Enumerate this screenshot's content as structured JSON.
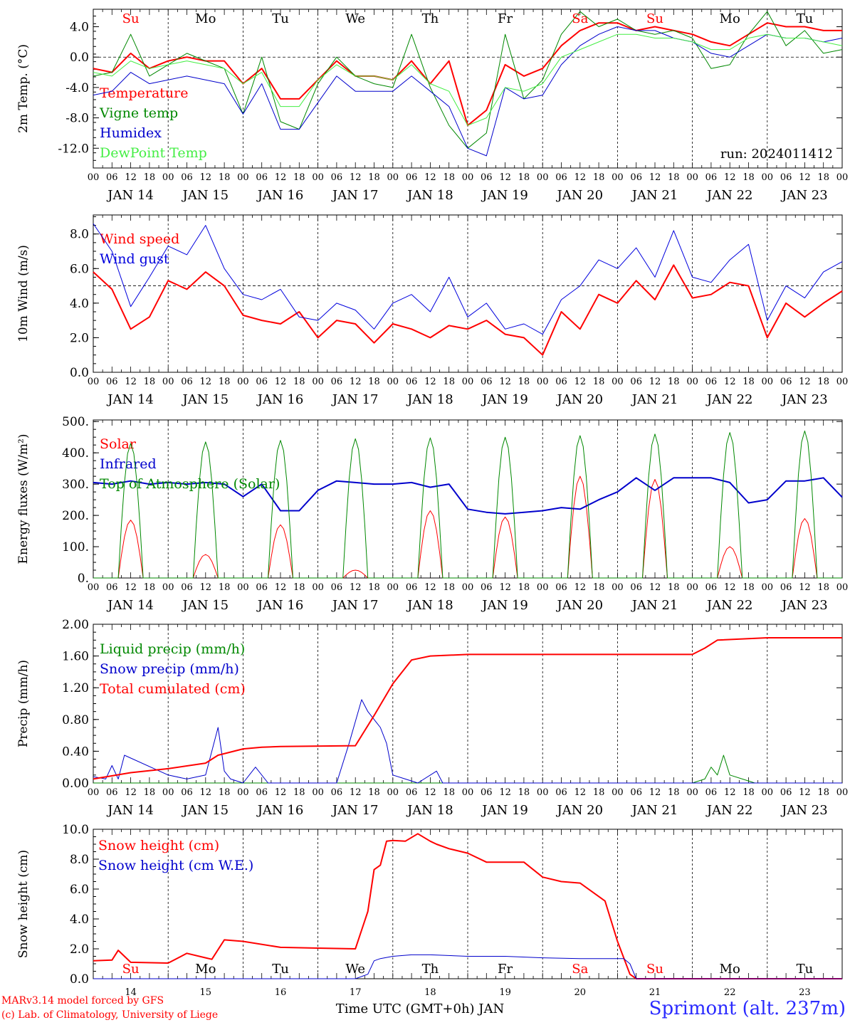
{
  "day_letters": [
    "Su",
    "Mo",
    "Tu",
    "We",
    "Th",
    "Fr",
    "Sa",
    "Su",
    "Mo",
    "Tu"
  ],
  "day_letter_colors": [
    "#ff0000",
    "#000000",
    "#000000",
    "#000000",
    "#000000",
    "#000000",
    "#ff0000",
    "#ff0000",
    "#000000",
    "#000000"
  ],
  "hour_ticks": [
    "00",
    "06",
    "12",
    "18"
  ],
  "hour_tick_end": "00",
  "date_labels": [
    "JAN 14",
    "JAN 15",
    "JAN 16",
    "JAN 17",
    "JAN 18",
    "JAN 19",
    "JAN 20",
    "JAN 21",
    "JAN 22",
    "JAN 23"
  ],
  "bottom_day_numbers": [
    "14",
    "15",
    "16",
    "17",
    "18",
    "19",
    "20",
    "21",
    "22",
    "23"
  ],
  "x_title": "Time UTC (GMT+0h) JAN",
  "credit_line1": "MARv3.14 model forced by GFS",
  "credit_line2": "(c) Lab. of Climatology, University of Liege",
  "station": "Sprimont (alt. 237m)",
  "chart_data": [
    {
      "type": "line",
      "ylabel": "2m Temp. (°C)",
      "ylim": [
        -14.6,
        6.3
      ],
      "yticks": [
        "4.0",
        "0.0",
        "-4.0",
        "-8.0",
        "-12.0"
      ],
      "ytick_values": [
        4,
        0,
        -4,
        -8,
        -12
      ],
      "reference_line": 0,
      "annotation": "run: 2024011412",
      "x_unit": "hours since JAN 14 00",
      "x_range": [
        0,
        240
      ],
      "series": [
        {
          "name": "Temperature",
          "color": "#ff0000",
          "width": 2,
          "x": [
            0,
            6,
            12,
            18,
            24,
            30,
            36,
            42,
            48,
            54,
            60,
            66,
            72,
            78,
            84,
            90,
            96,
            102,
            108,
            114,
            120,
            126,
            132,
            138,
            144,
            150,
            156,
            162,
            168,
            174,
            180,
            186,
            192,
            198,
            204,
            210,
            216,
            222,
            228,
            234,
            240
          ],
          "y": [
            -1.5,
            -2,
            0.5,
            -1.5,
            -0.5,
            0,
            -0.5,
            -0.5,
            -3.5,
            -1.5,
            -5.5,
            -5.5,
            -3,
            -0.5,
            -2.5,
            -2.5,
            -3,
            -0.5,
            -3.5,
            -0.5,
            -9,
            -7,
            -1,
            -2.5,
            -1.5,
            1.5,
            3.5,
            4.5,
            4.5,
            3.5,
            4,
            3.5,
            3,
            2,
            1.5,
            3,
            4.5,
            4,
            4,
            3.5,
            3.5
          ]
        },
        {
          "name": "Vigne temp",
          "color": "#008800",
          "width": 1,
          "x": [
            0,
            6,
            12,
            18,
            24,
            30,
            36,
            42,
            48,
            54,
            60,
            66,
            72,
            78,
            84,
            90,
            96,
            102,
            108,
            114,
            120,
            126,
            132,
            138,
            144,
            150,
            156,
            162,
            168,
            174,
            180,
            186,
            192,
            198,
            204,
            210,
            216,
            222,
            228,
            234,
            240
          ],
          "y": [
            -2.5,
            -2,
            3,
            -2.5,
            -1,
            0.5,
            -0.5,
            -1.5,
            -7.5,
            0,
            -8.5,
            -9.5,
            -3.5,
            0,
            -2.5,
            -3.5,
            -4,
            3,
            -4,
            -9,
            -12,
            -10,
            3,
            -5.5,
            -3,
            3,
            6,
            4,
            5,
            3.5,
            3,
            3.5,
            2.5,
            -1.5,
            -1,
            3,
            6,
            1.5,
            3.5,
            0.5,
            1
          ]
        },
        {
          "name": "Humidex",
          "color": "#0000cc",
          "width": 1,
          "x": [
            0,
            6,
            12,
            18,
            24,
            30,
            36,
            42,
            48,
            54,
            60,
            66,
            72,
            78,
            84,
            90,
            96,
            102,
            108,
            114,
            120,
            126,
            132,
            138,
            144,
            150,
            156,
            162,
            168,
            174,
            180,
            186,
            192,
            198,
            204,
            210,
            216,
            222,
            228,
            234,
            240
          ],
          "y": [
            -5,
            -4.5,
            -2,
            -3.5,
            -3,
            -2.5,
            -3,
            -3.5,
            -7.5,
            -3.5,
            -9.5,
            -9.5,
            -6,
            -2.5,
            -4.5,
            -4.5,
            -4.5,
            -2.5,
            -4.5,
            -6.5,
            -12,
            -13,
            -4,
            -5.5,
            -5,
            -1,
            1.5,
            3,
            4,
            3.5,
            3.5,
            2.5,
            2,
            0.5,
            0,
            1.5,
            3,
            2.5,
            2.5,
            2,
            2.5
          ]
        },
        {
          "name": "DewPoint Temp",
          "color": "#44ee44",
          "width": 1,
          "x": [
            0,
            6,
            12,
            18,
            24,
            30,
            36,
            42,
            48,
            54,
            60,
            66,
            72,
            78,
            84,
            90,
            96,
            102,
            108,
            114,
            120,
            126,
            132,
            138,
            144,
            150,
            156,
            162,
            168,
            174,
            180,
            186,
            192,
            198,
            204,
            210,
            216,
            222,
            228,
            234,
            240
          ],
          "y": [
            -2,
            -2.5,
            -0.5,
            -1.5,
            -1,
            -0.5,
            -1,
            -1.5,
            -3.5,
            -2,
            -6.5,
            -6.5,
            -3,
            -1,
            -2.5,
            -2.5,
            -3,
            -1,
            -3.5,
            -4.5,
            -9,
            -8,
            -4,
            -4.5,
            -3.5,
            0,
            1,
            2,
            3,
            3,
            2.5,
            2.5,
            2,
            1,
            1,
            2.5,
            3,
            2.5,
            2.5,
            2,
            1.5
          ]
        }
      ]
    },
    {
      "type": "line",
      "ylabel": "10m Wind (m/s)",
      "ylim": [
        0,
        9.1
      ],
      "yticks": [
        "8.0",
        "6.0",
        "4.0",
        "2.0",
        "0.0"
      ],
      "ytick_values": [
        8,
        6,
        4,
        2,
        0
      ],
      "reference_line": 5,
      "x_unit": "hours since JAN 14 00",
      "x_range": [
        0,
        240
      ],
      "series": [
        {
          "name": "Wind speed",
          "color": "#ff0000",
          "width": 2,
          "x": [
            0,
            6,
            12,
            18,
            24,
            30,
            36,
            42,
            48,
            54,
            60,
            66,
            72,
            78,
            84,
            90,
            96,
            102,
            108,
            114,
            120,
            126,
            132,
            138,
            144,
            150,
            156,
            162,
            168,
            174,
            180,
            186,
            192,
            198,
            204,
            210,
            216,
            222,
            228,
            234,
            240
          ],
          "y": [
            5.8,
            4.8,
            2.5,
            3.2,
            5.3,
            4.8,
            5.8,
            5,
            3.3,
            3,
            2.8,
            3.5,
            2,
            3,
            2.8,
            1.7,
            2.8,
            2.5,
            2,
            2.7,
            2.5,
            3,
            2.2,
            2,
            1,
            3.5,
            2.5,
            4.5,
            4,
            5.3,
            4.2,
            6.2,
            4.3,
            4.5,
            5.2,
            5,
            2,
            4,
            3.2,
            4,
            4.7
          ]
        },
        {
          "name": "Wind gust",
          "color": "#0000dd",
          "width": 1,
          "x": [
            0,
            6,
            12,
            18,
            24,
            30,
            36,
            42,
            48,
            54,
            60,
            66,
            72,
            78,
            84,
            90,
            96,
            102,
            108,
            114,
            120,
            126,
            132,
            138,
            144,
            150,
            156,
            162,
            168,
            174,
            180,
            186,
            192,
            198,
            204,
            210,
            216,
            222,
            228,
            234,
            240
          ],
          "y": [
            8.6,
            7,
            3.8,
            5.5,
            7.3,
            6.8,
            8.5,
            6,
            4.5,
            4.2,
            4.8,
            3.2,
            3,
            4,
            3.6,
            2.5,
            4,
            4.5,
            3.5,
            5.5,
            3.2,
            4,
            2.5,
            2.8,
            2.2,
            4.2,
            5,
            6.5,
            6,
            7.2,
            5.5,
            8.2,
            5.5,
            5.2,
            6.5,
            7.4,
            3,
            5,
            4.3,
            5.8,
            6.4
          ]
        }
      ]
    },
    {
      "type": "line",
      "ylabel": "Energy fluxes (W/m²)",
      "ylim": [
        0,
        505
      ],
      "yticks": [
        "500.",
        "400.",
        "300.",
        "200.",
        "100.",
        "0."
      ],
      "ytick_values": [
        500,
        400,
        300,
        200,
        100,
        0
      ],
      "x_unit": "hours since JAN 14 00",
      "x_range": [
        0,
        240
      ],
      "series": [
        {
          "name": "Solar",
          "color": "#ff0000",
          "width": 1,
          "peak_hour": 12,
          "daylight_hours": [
            8,
            16
          ],
          "daily_peaks": [
            185,
            75,
            170,
            25,
            215,
            195,
            325,
            315,
            100,
            190
          ]
        },
        {
          "name": "Infrared",
          "color": "#0000cc",
          "width": 2,
          "x": [
            0,
            6,
            12,
            18,
            24,
            30,
            36,
            42,
            48,
            54,
            60,
            66,
            72,
            78,
            84,
            90,
            96,
            102,
            108,
            114,
            120,
            126,
            132,
            138,
            144,
            150,
            156,
            162,
            168,
            174,
            180,
            186,
            192,
            198,
            204,
            210,
            216,
            222,
            228,
            234,
            240
          ],
          "y": [
            305,
            300,
            310,
            300,
            305,
            300,
            305,
            300,
            260,
            300,
            215,
            215,
            280,
            310,
            305,
            300,
            300,
            305,
            290,
            300,
            220,
            210,
            205,
            210,
            215,
            225,
            220,
            250,
            275,
            320,
            280,
            320,
            320,
            320,
            305,
            240,
            250,
            310,
            310,
            320,
            258
          ]
        },
        {
          "name": "Top of Atmosphere (Solar)",
          "color": "#008800",
          "width": 1,
          "peak_hour": 12,
          "daylight_hours": [
            8,
            16
          ],
          "daily_peaks": [
            430,
            435,
            440,
            445,
            448,
            450,
            455,
            460,
            465,
            470
          ]
        }
      ]
    },
    {
      "type": "line",
      "ylabel": "Precip (mm/h)",
      "ylim": [
        0,
        2.0
      ],
      "yticks": [
        "2.00",
        "1.60",
        "1.20",
        "0.80",
        "0.40",
        "0.00"
      ],
      "ytick_values": [
        2.0,
        1.6,
        1.2,
        0.8,
        0.4,
        0
      ],
      "x_unit": "hours since JAN 14 00",
      "x_range": [
        0,
        240
      ],
      "series": [
        {
          "name": "Liquid precip (mm/h)",
          "color": "#008800",
          "width": 1,
          "x": [
            0,
            192,
            196,
            198,
            200,
            202,
            204,
            208,
            212,
            240
          ],
          "y": [
            0,
            0,
            0.05,
            0.2,
            0.1,
            0.35,
            0.1,
            0.05,
            0,
            0
          ]
        },
        {
          "name": "Snow precip (mm/h)",
          "color": "#0000cc",
          "width": 1,
          "x": [
            0,
            4,
            6,
            8,
            10,
            24,
            30,
            36,
            40,
            42,
            44,
            48,
            52,
            56,
            60,
            78,
            82,
            86,
            88,
            90,
            92,
            94,
            96,
            100,
            104,
            110,
            112,
            116,
            240
          ],
          "y": [
            0.08,
            0.05,
            0.22,
            0.05,
            0.35,
            0.1,
            0.05,
            0.1,
            0.7,
            0.15,
            0.05,
            0,
            0.2,
            0,
            0,
            0,
            0.5,
            1.05,
            0.9,
            0.8,
            0.7,
            0.5,
            0.1,
            0.05,
            0,
            0.15,
            0,
            0,
            0
          ]
        },
        {
          "name": "Total cumulated (cm)",
          "color": "#ff0000",
          "width": 2,
          "x": [
            0,
            12,
            24,
            36,
            40,
            48,
            54,
            60,
            84,
            90,
            96,
            102,
            108,
            120,
            144,
            168,
            192,
            196,
            200,
            216,
            240
          ],
          "y": [
            0.05,
            0.13,
            0.18,
            0.25,
            0.35,
            0.43,
            0.45,
            0.46,
            0.47,
            0.85,
            1.25,
            1.55,
            1.6,
            1.62,
            1.62,
            1.62,
            1.62,
            1.7,
            1.8,
            1.83,
            1.83
          ]
        }
      ]
    },
    {
      "type": "line",
      "ylabel": "Snow height (cm)",
      "ylim": [
        0,
        10
      ],
      "yticks": [
        "10.0",
        "8.0",
        "6.0",
        "4.0",
        "2.0",
        "0.0"
      ],
      "ytick_values": [
        10,
        8,
        6,
        4,
        2,
        0
      ],
      "x_unit": "hours since JAN 14 00",
      "x_range": [
        0,
        240
      ],
      "series": [
        {
          "name": "Snow height (cm)",
          "color": "#ff0000",
          "width": 2,
          "x": [
            0,
            6,
            8,
            12,
            24,
            30,
            36,
            38,
            42,
            48,
            60,
            72,
            84,
            88,
            90,
            92,
            94,
            96,
            100,
            104,
            108,
            110,
            114,
            120,
            126,
            132,
            138,
            144,
            150,
            156,
            164,
            168,
            172,
            174,
            177,
            240
          ],
          "y": [
            1.2,
            1.25,
            1.9,
            1.1,
            1.05,
            1.7,
            1.4,
            1.3,
            2.6,
            2.5,
            2.1,
            2.05,
            2.0,
            4.5,
            7.3,
            7.6,
            9.2,
            9.25,
            9.2,
            9.7,
            9.2,
            9.0,
            8.7,
            8.4,
            7.8,
            7.8,
            7.8,
            6.8,
            6.5,
            6.4,
            5.2,
            2.5,
            0.3,
            0,
            0,
            0
          ]
        },
        {
          "name": "Snow height (cm W.E.)",
          "color": "#0000cc",
          "width": 1,
          "x": [
            0,
            84,
            88,
            90,
            92,
            96,
            102,
            108,
            120,
            132,
            144,
            156,
            170,
            172,
            174,
            240
          ],
          "y": [
            0,
            0,
            0.3,
            1.2,
            1.35,
            1.5,
            1.6,
            1.6,
            1.5,
            1.5,
            1.4,
            1.35,
            1.35,
            1.0,
            0,
            0
          ]
        }
      ]
    }
  ]
}
